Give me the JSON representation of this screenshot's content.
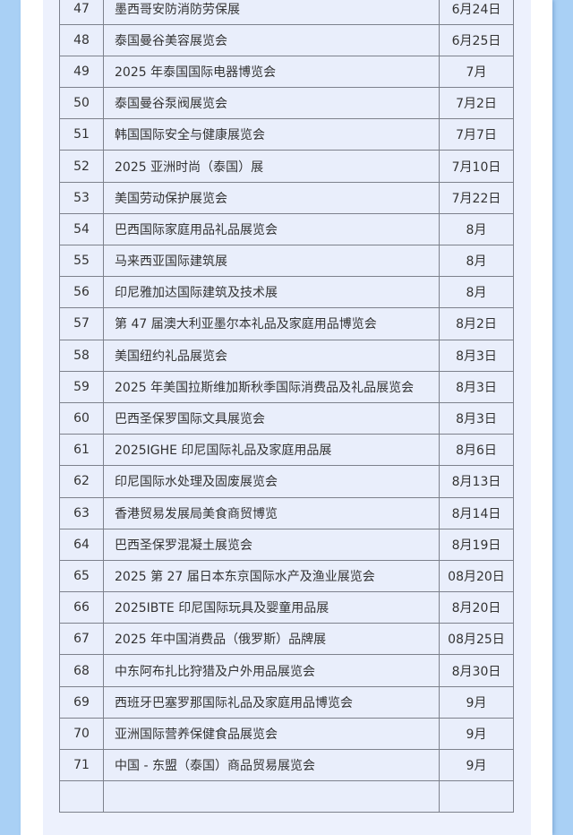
{
  "colors": {
    "background": "#a9d0f5",
    "panel": "#ffffff",
    "table_cell": "#e9eefb",
    "border": "#7d818c"
  },
  "rows": [
    {
      "no": "47",
      "name": "墨西哥安防消防劳保展",
      "date": "6月24日"
    },
    {
      "no": "48",
      "name": "泰国曼谷美容展览会",
      "date": "6月25日"
    },
    {
      "no": "49",
      "name": "2025 年泰国国际电器博览会",
      "date": "7月"
    },
    {
      "no": "50",
      "name": "泰国曼谷泵阀展览会",
      "date": "7月2日"
    },
    {
      "no": "51",
      "name": "韩国国际安全与健康展览会",
      "date": "7月7日"
    },
    {
      "no": "52",
      "name": "2025 亚洲时尚（泰国）展",
      "date": "7月10日"
    },
    {
      "no": "53",
      "name": "美国劳动保护展览会",
      "date": "7月22日"
    },
    {
      "no": "54",
      "name": "巴西国际家庭用品礼品展览会",
      "date": "8月"
    },
    {
      "no": "55",
      "name": "马来西亚国际建筑展",
      "date": "8月"
    },
    {
      "no": "56",
      "name": "印尼雅加达国际建筑及技术展",
      "date": "8月"
    },
    {
      "no": "57",
      "name": "第 47 届澳大利亚墨尔本礼品及家庭用品博览会",
      "date": "8月2日"
    },
    {
      "no": "58",
      "name": "美国纽约礼品展览会",
      "date": "8月3日"
    },
    {
      "no": "59",
      "name": "2025 年美国拉斯维加斯秋季国际消费品及礼品展览会",
      "date": "8月3日"
    },
    {
      "no": "60",
      "name": "巴西圣保罗国际文具展览会",
      "date": "8月3日"
    },
    {
      "no": "61",
      "name": "2025IGHE 印尼国际礼品及家庭用品展",
      "date": "8月6日"
    },
    {
      "no": "62",
      "name": "印尼国际水处理及固废展览会",
      "date": "8月13日"
    },
    {
      "no": "63",
      "name": "香港贸易发展局美食商贸博览",
      "date": "8月14日"
    },
    {
      "no": "64",
      "name": "巴西圣保罗混凝土展览会",
      "date": "8月19日"
    },
    {
      "no": "65",
      "name": "2025 第 27 届日本东京国际水产及渔业展览会",
      "date": "08月20日"
    },
    {
      "no": "66",
      "name": "2025IBTE 印尼国际玩具及婴童用品展",
      "date": "8月20日"
    },
    {
      "no": "67",
      "name": "2025 年中国消费品（俄罗斯）品牌展",
      "date": "08月25日"
    },
    {
      "no": "68",
      "name": "中东阿布扎比狩猎及户外用品展览会",
      "date": "8月30日"
    },
    {
      "no": "69",
      "name": "西班牙巴塞罗那国际礼品及家庭用品博览会",
      "date": "9月"
    },
    {
      "no": "70",
      "name": "亚洲国际营养保健食品展览会",
      "date": "9月"
    },
    {
      "no": "71",
      "name": "中国 - 东盟（泰国）商品贸易展览会",
      "date": "9月"
    }
  ]
}
